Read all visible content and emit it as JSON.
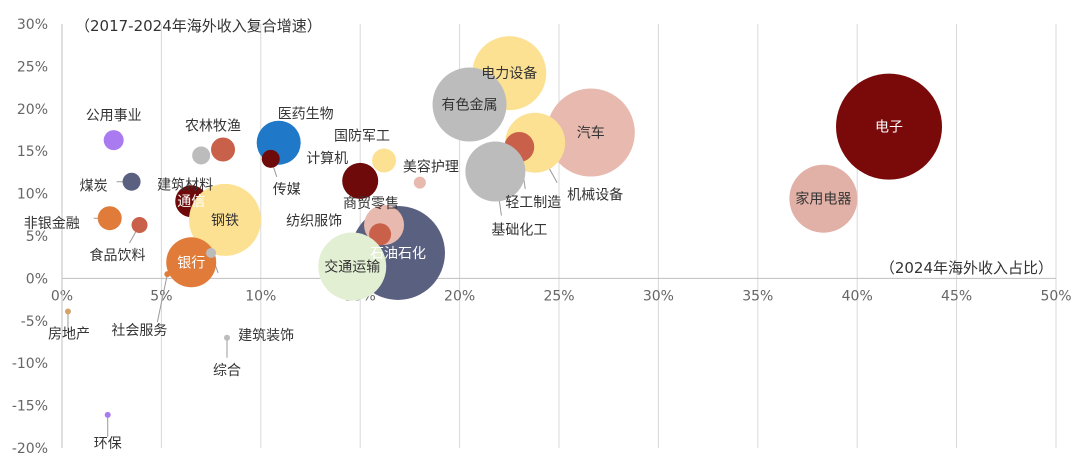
{
  "chart_data": {
    "type": "bubble",
    "ylabel": "（2017-2024年海外收入复合增速）",
    "xlabel": "（2024年海外收入占比）",
    "xlim": [
      0,
      50
    ],
    "ylim": [
      -20,
      30
    ],
    "x_ticks": [
      "0%",
      "5%",
      "10%",
      "15%",
      "20%",
      "25%",
      "30%",
      "35%",
      "40%",
      "45%",
      "50%"
    ],
    "y_ticks": [
      "30%",
      "25%",
      "20%",
      "15%",
      "10%",
      "5%",
      "0%",
      "-5%",
      "-10%",
      "-15%",
      "-20%"
    ],
    "grid": "vertical",
    "points": [
      {
        "name": "电子",
        "x": 41.6,
        "y": 17.9,
        "r": 53,
        "color": "#7a0a0a",
        "label_inside": true,
        "label_color": "#ffffff"
      },
      {
        "name": "家用电器",
        "x": 38.3,
        "y": 9.4,
        "r": 34,
        "color": "#e1b0a6",
        "label_inside": true,
        "label_color": "#333333"
      },
      {
        "name": "汽车",
        "x": 26.6,
        "y": 17.2,
        "r": 44,
        "color": "#e8b9ae",
        "label_inside": true,
        "label_color": "#333333"
      },
      {
        "name": "电力设备",
        "x": 22.5,
        "y": 24.2,
        "r": 37,
        "color": "#fde193",
        "label_inside": true,
        "label_color": "#333333"
      },
      {
        "name": "有色金属",
        "x": 20.5,
        "y": 20.5,
        "r": 37,
        "color": "#bcbcbc",
        "label_inside": true,
        "label_color": "#333333"
      },
      {
        "name": "机械设备",
        "x": 23.8,
        "y": 16.0,
        "r": 30,
        "color": "#fde193",
        "label_inside": false,
        "label_color": "#333333"
      },
      {
        "name": "轻工制造",
        "x": 23.0,
        "y": 15.5,
        "r": 15,
        "color": "#c8604a",
        "label_inside": false,
        "label_color": "#333333"
      },
      {
        "name": "基础化工",
        "x": 21.8,
        "y": 12.6,
        "r": 30,
        "color": "#bcbcbc",
        "label_inside": false,
        "label_color": "#333333"
      },
      {
        "name": "石油石化",
        "x": 16.9,
        "y": 3.0,
        "r": 47,
        "color": "#5a6080",
        "label_inside": true,
        "label_color": "#ffffff"
      },
      {
        "name": "商贸零售",
        "x": 16.2,
        "y": 6.3,
        "r": 20,
        "color": "#e8b9ae",
        "label_inside": false,
        "label_color": "#333333"
      },
      {
        "name": "纺织服饰",
        "x": 16.0,
        "y": 5.2,
        "r": 11,
        "color": "#c8604a",
        "label_inside": false,
        "label_color": "#333333"
      },
      {
        "name": "交通运输",
        "x": 14.6,
        "y": 1.4,
        "r": 34,
        "color": "#e3efd3",
        "label_inside": true,
        "label_color": "#333333"
      },
      {
        "name": "国防军工",
        "x": 16.2,
        "y": 13.9,
        "r": 12,
        "color": "#fde193",
        "label_inside": false,
        "label_color": "#333333"
      },
      {
        "name": "美容护理",
        "x": 18.0,
        "y": 11.3,
        "r": 6,
        "color": "#e8b9ae",
        "label_inside": false,
        "label_color": "#333333"
      },
      {
        "name": "计算机",
        "x": 15.0,
        "y": 11.5,
        "r": 18,
        "color": "#6e0a0a",
        "label_inside": false,
        "label_color": "#333333"
      },
      {
        "name": "医药生物",
        "x": 10.9,
        "y": 16.0,
        "r": 22,
        "color": "#1f78c8",
        "label_inside": false,
        "label_color": "#333333"
      },
      {
        "name": "传媒",
        "x": 10.5,
        "y": 14.1,
        "r": 9,
        "color": "#6e0a0a",
        "label_inside": false,
        "label_color": "#333333"
      },
      {
        "name": "农林牧渔",
        "x": 8.1,
        "y": 15.2,
        "r": 12,
        "color": "#c8604a",
        "label_inside": false,
        "label_color": "#333333"
      },
      {
        "name": "建筑材料",
        "x": 7.0,
        "y": 14.5,
        "r": 9,
        "color": "#bcbcbc",
        "label_inside": false,
        "label_color": "#333333"
      },
      {
        "name": "公用事业",
        "x": 2.6,
        "y": 16.3,
        "r": 10,
        "color": "#a97af0",
        "label_inside": false,
        "label_color": "#333333"
      },
      {
        "name": "煤炭",
        "x": 3.5,
        "y": 11.4,
        "r": 9,
        "color": "#5a6080",
        "label_inside": false,
        "label_color": "#333333"
      },
      {
        "name": "通信",
        "x": 6.5,
        "y": 9.1,
        "r": 16,
        "color": "#6e0a0a",
        "label_inside": true,
        "label_color": "#ffffff"
      },
      {
        "name": "钢铁",
        "x": 8.2,
        "y": 6.9,
        "r": 36,
        "color": "#fde193",
        "label_inside": true,
        "label_color": "#333333"
      },
      {
        "name": "非银金融",
        "x": 2.4,
        "y": 7.1,
        "r": 12,
        "color": "#e07b39",
        "label_inside": false,
        "label_color": "#333333"
      },
      {
        "name": "食品饮料",
        "x": 3.9,
        "y": 6.3,
        "r": 8,
        "color": "#c8604a",
        "label_inside": false,
        "label_color": "#333333"
      },
      {
        "name": "银行",
        "x": 6.5,
        "y": 1.9,
        "r": 25,
        "color": "#e07b39",
        "label_inside": true,
        "label_color": "#ffffff"
      },
      {
        "name": "建筑装饰",
        "x": 7.5,
        "y": 3.0,
        "r": 5,
        "color": "#bcbcbc",
        "label_inside": false,
        "label_color": "#333333"
      },
      {
        "name": "社会服务",
        "x": 5.3,
        "y": 0.5,
        "r": 3,
        "color": "#e07b39",
        "label_inside": false,
        "label_color": "#333333"
      },
      {
        "name": "综合",
        "x": 8.3,
        "y": -7.0,
        "r": 3,
        "color": "#bcbcbc",
        "label_inside": false,
        "label_color": "#333333"
      },
      {
        "name": "房地产",
        "x": 0.3,
        "y": -3.9,
        "r": 3,
        "color": "#d4a46a",
        "label_inside": false,
        "label_color": "#333333"
      },
      {
        "name": "环保",
        "x": 2.3,
        "y": -16.1,
        "r": 3,
        "color": "#a97af0",
        "label_inside": false,
        "label_color": "#333333"
      }
    ]
  }
}
